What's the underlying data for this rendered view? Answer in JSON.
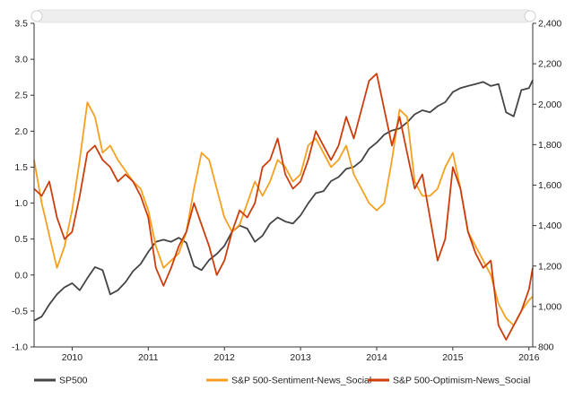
{
  "chart_data": {
    "type": "line",
    "title": "",
    "xlabel": "",
    "x_ticks": [
      "2010",
      "2011",
      "2012",
      "2013",
      "2014",
      "2015",
      "2016"
    ],
    "x_range": [
      2009.5,
      2016.05
    ],
    "y_left": {
      "label": "",
      "ticks": [
        "3.5",
        "3.0",
        "2.5",
        "2.0",
        "1.5",
        "1.0",
        "0.5",
        "0.0",
        "-0.5",
        "-1.0"
      ],
      "range": [
        -1.0,
        3.5
      ]
    },
    "y_right": {
      "label": "",
      "ticks": [
        "2,400",
        "2,200",
        "2,000",
        "1,800",
        "1,600",
        "1,400",
        "1,200",
        "1,000",
        "800"
      ],
      "range": [
        800,
        2400
      ]
    },
    "grid": false,
    "legend_position": "bottom",
    "colors": {
      "SP500": "#444444",
      "S&P 500-Sentiment-News_Social": "#F5A01E",
      "S&P 500-Optimism-News_Social": "#CC3D0C",
      "scrollbar": "#eeeeee"
    },
    "series": [
      {
        "name": "SP500",
        "axis": "right",
        "x": [
          2009.5,
          2009.6,
          2009.7,
          2009.8,
          2009.9,
          2010.0,
          2010.1,
          2010.2,
          2010.3,
          2010.4,
          2010.5,
          2010.6,
          2010.7,
          2010.8,
          2010.9,
          2011.0,
          2011.1,
          2011.2,
          2011.3,
          2011.4,
          2011.5,
          2011.6,
          2011.7,
          2011.8,
          2011.9,
          2012.0,
          2012.1,
          2012.2,
          2012.3,
          2012.4,
          2012.5,
          2012.6,
          2012.7,
          2012.8,
          2012.9,
          2013.0,
          2013.1,
          2013.2,
          2013.3,
          2013.4,
          2013.5,
          2013.6,
          2013.7,
          2013.8,
          2013.9,
          2014.0,
          2014.1,
          2014.2,
          2014.3,
          2014.4,
          2014.5,
          2014.6,
          2014.7,
          2014.8,
          2014.9,
          2015.0,
          2015.1,
          2015.2,
          2015.3,
          2015.4,
          2015.5,
          2015.6,
          2015.7,
          2015.8,
          2015.9,
          2016.0,
          2016.05
        ],
        "values": [
          930,
          950,
          1010,
          1060,
          1095,
          1115,
          1080,
          1140,
          1195,
          1180,
          1060,
          1080,
          1120,
          1175,
          1210,
          1270,
          1320,
          1330,
          1320,
          1340,
          1315,
          1200,
          1180,
          1230,
          1260,
          1300,
          1370,
          1400,
          1385,
          1320,
          1350,
          1410,
          1440,
          1420,
          1410,
          1450,
          1510,
          1560,
          1570,
          1620,
          1640,
          1680,
          1690,
          1720,
          1780,
          1810,
          1850,
          1870,
          1880,
          1910,
          1950,
          1970,
          1960,
          1990,
          2010,
          2060,
          2080,
          2090,
          2100,
          2110,
          2090,
          2100,
          1960,
          1940,
          2070,
          2080,
          2120
        ]
      },
      {
        "name": "S&P 500-Sentiment-News_Social",
        "axis": "left",
        "x": [
          2009.5,
          2009.6,
          2009.7,
          2009.8,
          2009.9,
          2010.0,
          2010.1,
          2010.2,
          2010.3,
          2010.4,
          2010.5,
          2010.6,
          2010.7,
          2010.8,
          2010.9,
          2011.0,
          2011.1,
          2011.2,
          2011.3,
          2011.4,
          2011.5,
          2011.6,
          2011.7,
          2011.8,
          2011.9,
          2012.0,
          2012.1,
          2012.2,
          2012.3,
          2012.4,
          2012.5,
          2012.6,
          2012.7,
          2012.8,
          2012.9,
          2013.0,
          2013.1,
          2013.2,
          2013.3,
          2013.4,
          2013.5,
          2013.6,
          2013.7,
          2013.8,
          2013.9,
          2014.0,
          2014.1,
          2014.2,
          2014.3,
          2014.4,
          2014.5,
          2014.6,
          2014.7,
          2014.8,
          2014.9,
          2015.0,
          2015.1,
          2015.2,
          2015.3,
          2015.4,
          2015.5,
          2015.6,
          2015.7,
          2015.8,
          2015.9,
          2016.0,
          2016.05
        ],
        "values": [
          1.6,
          1.0,
          0.55,
          0.1,
          0.4,
          0.9,
          1.6,
          2.4,
          2.2,
          1.7,
          1.8,
          1.6,
          1.45,
          1.3,
          1.2,
          0.9,
          0.4,
          0.1,
          0.2,
          0.3,
          0.6,
          1.2,
          1.7,
          1.6,
          1.2,
          0.8,
          0.6,
          0.7,
          1.0,
          1.3,
          1.1,
          1.3,
          1.6,
          1.5,
          1.3,
          1.4,
          1.8,
          1.9,
          1.7,
          1.5,
          1.6,
          1.8,
          1.4,
          1.2,
          1.0,
          0.9,
          1.0,
          1.6,
          2.3,
          2.2,
          1.3,
          1.1,
          1.1,
          1.2,
          1.5,
          1.7,
          1.2,
          0.6,
          0.4,
          0.2,
          0.0,
          -0.4,
          -0.6,
          -0.7,
          -0.5,
          -0.35,
          -0.3
        ]
      },
      {
        "name": "S&P 500-Optimism-News_Social",
        "axis": "left",
        "x": [
          2009.5,
          2009.6,
          2009.7,
          2009.8,
          2009.9,
          2010.0,
          2010.1,
          2010.2,
          2010.3,
          2010.4,
          2010.5,
          2010.6,
          2010.7,
          2010.8,
          2010.9,
          2011.0,
          2011.1,
          2011.2,
          2011.3,
          2011.4,
          2011.5,
          2011.6,
          2011.7,
          2011.8,
          2011.9,
          2012.0,
          2012.1,
          2012.2,
          2012.3,
          2012.4,
          2012.5,
          2012.6,
          2012.7,
          2012.8,
          2012.9,
          2013.0,
          2013.1,
          2013.2,
          2013.3,
          2013.4,
          2013.5,
          2013.6,
          2013.7,
          2013.8,
          2013.9,
          2014.0,
          2014.1,
          2014.2,
          2014.3,
          2014.4,
          2014.5,
          2014.6,
          2014.7,
          2014.8,
          2014.9,
          2015.0,
          2015.1,
          2015.2,
          2015.3,
          2015.4,
          2015.5,
          2015.6,
          2015.7,
          2015.8,
          2015.9,
          2016.0,
          2016.05
        ],
        "values": [
          1.2,
          1.1,
          1.3,
          0.8,
          0.5,
          0.6,
          1.1,
          1.7,
          1.8,
          1.6,
          1.5,
          1.3,
          1.4,
          1.3,
          1.1,
          0.8,
          0.1,
          -0.15,
          0.1,
          0.4,
          0.6,
          1.0,
          0.7,
          0.4,
          0.0,
          0.2,
          0.6,
          0.9,
          0.8,
          1.0,
          1.5,
          1.6,
          1.9,
          1.4,
          1.2,
          1.3,
          1.6,
          2.0,
          1.8,
          1.6,
          1.8,
          2.2,
          1.9,
          2.3,
          2.7,
          2.8,
          2.3,
          1.8,
          2.2,
          1.7,
          1.2,
          1.4,
          0.8,
          0.2,
          0.5,
          1.5,
          1.2,
          0.6,
          0.3,
          0.1,
          0.2,
          -0.7,
          -0.9,
          -0.7,
          -0.5,
          -0.2,
          0.1
        ]
      }
    ]
  }
}
